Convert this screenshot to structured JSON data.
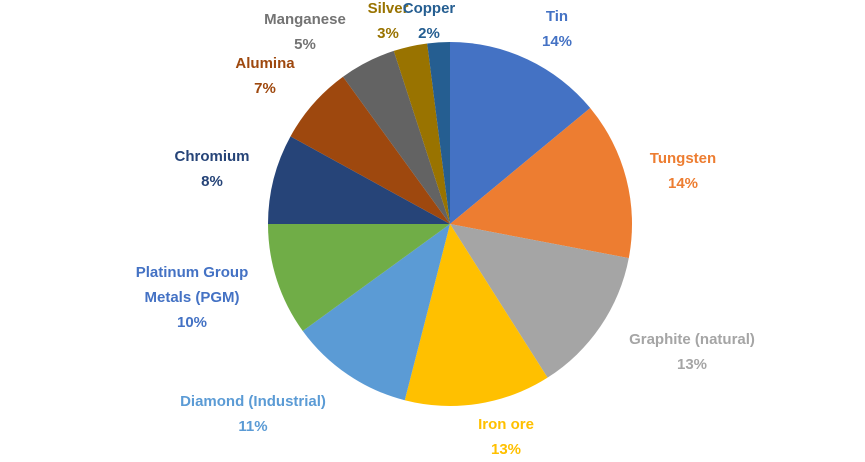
{
  "chart_data": {
    "type": "pie",
    "title": "",
    "legend": "none",
    "value_unit": "%",
    "start_angle_deg": 0,
    "direction": "clockwise",
    "slices": [
      {
        "label": "Tin",
        "value": 14,
        "pct_label": "14%",
        "color": "#4472C4",
        "label_color": "#4472C4"
      },
      {
        "label": "Tungsten",
        "value": 14,
        "pct_label": "14%",
        "color": "#ED7D31",
        "label_color": "#ED7D31"
      },
      {
        "label": "Graphite (natural)",
        "value": 13,
        "pct_label": "13%",
        "color": "#A5A5A5",
        "label_color": "#A5A5A5"
      },
      {
        "label": "Iron ore",
        "value": 13,
        "pct_label": "13%",
        "color": "#FFC000",
        "label_color": "#FFC000"
      },
      {
        "label": "Diamond (Industrial)",
        "value": 11,
        "pct_label": "11%",
        "color": "#5B9BD5",
        "label_color": "#5B9BD5"
      },
      {
        "label": "Platinum Group Metals (PGM)",
        "value": 10,
        "pct_label": "10%",
        "color": "#70AD47",
        "label_color": "#4472C4",
        "label_lines": {
          "0": "Platinum Group",
          "1": "Metals (PGM)"
        }
      },
      {
        "label": "Chromium",
        "value": 8,
        "pct_label": "8%",
        "color": "#264478",
        "label_color": "#264478"
      },
      {
        "label": "Alumina",
        "value": 7,
        "pct_label": "7%",
        "color": "#9E480E",
        "label_color": "#9E480E"
      },
      {
        "label": "Manganese",
        "value": 5,
        "pct_label": "5%",
        "color": "#636363",
        "label_color": "#737373"
      },
      {
        "label": "Silver",
        "value": 3,
        "pct_label": "3%",
        "color": "#997300",
        "label_color": "#997300"
      },
      {
        "label": "Copper",
        "value": 2,
        "pct_label": "2%",
        "color": "#255E91",
        "label_color": "#255E91"
      }
    ]
  }
}
